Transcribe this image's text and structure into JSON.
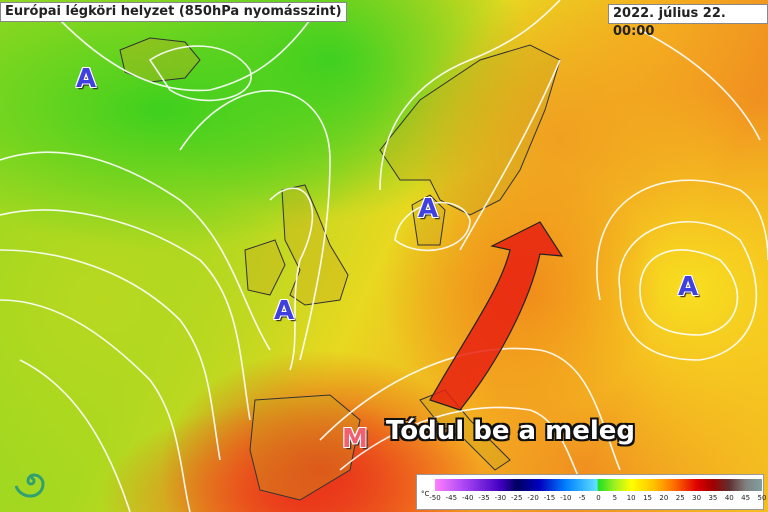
{
  "header": {
    "title": "Európai légköri helyzet (850hPa nyomásszint)",
    "datetime": "2022. július 22. 00:00"
  },
  "pressure_centers": [
    {
      "label": "A",
      "type": "high"
    },
    {
      "label": "A",
      "type": "high"
    },
    {
      "label": "A",
      "type": "high"
    },
    {
      "label": "A",
      "type": "high"
    },
    {
      "label": "M",
      "type": "low"
    }
  ],
  "annotation": {
    "caption": "Tódul be a meleg",
    "arrow_color": "#e82010"
  },
  "legend": {
    "unit": "°C",
    "ticks": [
      "-50",
      "-45",
      "-40",
      "-35",
      "-30",
      "-25",
      "-20",
      "-15",
      "-10",
      "-5",
      "0",
      "5",
      "10",
      "15",
      "20",
      "25",
      "30",
      "35",
      "40",
      "45",
      "50"
    ],
    "range": [
      -50,
      50
    ]
  },
  "logo": {
    "icon": "spiral-logo-icon",
    "color": "#30a070"
  }
}
